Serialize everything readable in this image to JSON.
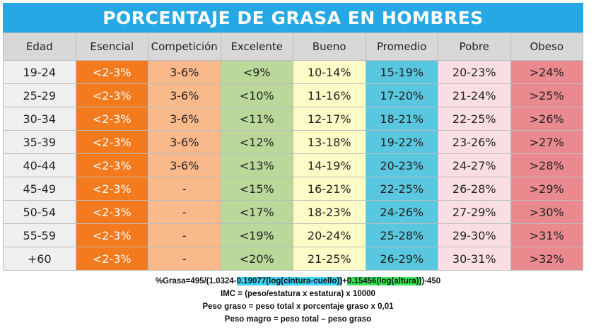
{
  "title": "PORCENTAJE DE GRASA EN HOMBRES",
  "colors": {
    "title_bg": "#26a8e4",
    "esencial": "#f47a1e",
    "competicion": "#f9b98a",
    "excelente": "#b9d89a",
    "bueno": "#fdfbc6",
    "promedio": "#59c7df",
    "pobre": "#f9dfe3",
    "obeso": "#ea8a8e"
  },
  "headers": [
    "Edad",
    "Esencial",
    "Competición",
    "Excelente",
    "Bueno",
    "Promedio",
    "Pobre",
    "Obeso"
  ],
  "rows": [
    [
      "19-24",
      "<2-3%",
      "3-6%",
      "<9%",
      "10-14%",
      "15-19%",
      "20-23%",
      ">24%"
    ],
    [
      "25-29",
      "<2-3%",
      "3-6%",
      "<10%",
      "11-16%",
      "17-20%",
      "21-24%",
      ">25%"
    ],
    [
      "30-34",
      "<2-3%",
      "3-6%",
      "<11%",
      "12-17%",
      "18-21%",
      "22-25%",
      ">26%"
    ],
    [
      "35-39",
      "<2-3%",
      "3-6%",
      "<12%",
      "13-18%",
      "19-22%",
      "23-26%",
      ">27%"
    ],
    [
      "40-44",
      "<2-3%",
      "3-6%",
      "<13%",
      "14-19%",
      "20-23%",
      "24-27%",
      ">28%"
    ],
    [
      "45-49",
      "<2-3%",
      "-",
      "<15%",
      "16-21%",
      "22-25%",
      "26-28%",
      ">29%"
    ],
    [
      "50-54",
      "<2-3%",
      "-",
      "<17%",
      "18-23%",
      "24-26%",
      "27-29%",
      ">30%"
    ],
    [
      "55-59",
      "<2-3%",
      "-",
      "<19%",
      "20-24%",
      "25-28%",
      "29-30%",
      ">31%"
    ],
    [
      "+60",
      "<2-3%",
      "-",
      "<20%",
      "21-25%",
      "26-29%",
      "30-31%",
      ">32%"
    ]
  ],
  "formulas": {
    "grasa_prefix": "%Grasa=495/(1.0324-",
    "grasa_cyan": "0.19077(log(cintura-cuello))",
    "grasa_mid": "+",
    "grasa_green": "0.15456(log(altura))",
    "grasa_suffix": ")-450",
    "imc": "IMC = (peso/estatura x estatura) x 10000",
    "peso_graso": "Peso graso = peso total x porcentaje graso x 0,01",
    "peso_magro": "Peso magro = peso total – peso graso"
  }
}
